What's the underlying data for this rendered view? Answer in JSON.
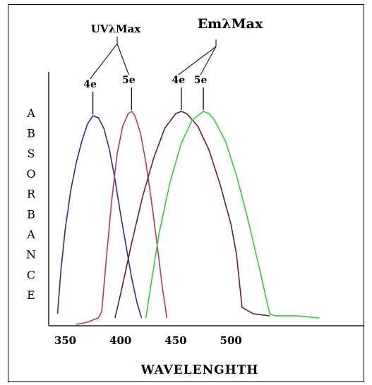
{
  "chart_data": {
    "type": "line",
    "xlabel": "WAVELENGHTH",
    "ylabel": "ABSORBANCE",
    "x_ticks": [
      350,
      400,
      450,
      500
    ],
    "xlim": [
      335,
      620
    ],
    "ylim": [
      0,
      1
    ],
    "grid": false,
    "group_labels": {
      "uv": "UVλMax",
      "em": "EmλMax"
    },
    "series": [
      {
        "label": "4e",
        "group": "uv",
        "color": "#2a2aa0",
        "x": [
          343,
          346,
          350,
          355,
          360,
          365,
          370,
          375,
          380,
          385,
          390,
          395,
          400,
          405,
          410,
          415,
          419
        ],
        "y": [
          0.05,
          0.25,
          0.45,
          0.63,
          0.76,
          0.86,
          0.94,
          0.98,
          0.97,
          0.92,
          0.82,
          0.68,
          0.52,
          0.37,
          0.22,
          0.1,
          0.03
        ]
      },
      {
        "label": "5e",
        "group": "uv",
        "color": "#c0306a",
        "x": [
          360,
          370,
          380,
          383,
          387,
          392,
          397,
          402,
          407,
          410,
          413,
          418,
          423,
          428,
          433,
          438,
          442
        ],
        "y": [
          0.0,
          0.01,
          0.03,
          0.06,
          0.3,
          0.58,
          0.8,
          0.93,
          0.99,
          1.0,
          0.98,
          0.9,
          0.76,
          0.58,
          0.38,
          0.17,
          0.03
        ]
      },
      {
        "label": "4e",
        "group": "em",
        "color": "#6a1a3a",
        "x": [
          395,
          400,
          410,
          420,
          430,
          440,
          450,
          455,
          460,
          470,
          480,
          490,
          500,
          505,
          510,
          520,
          535
        ],
        "y": [
          0.03,
          0.14,
          0.38,
          0.6,
          0.78,
          0.92,
          0.99,
          1.0,
          0.99,
          0.93,
          0.82,
          0.66,
          0.47,
          0.33,
          0.08,
          0.05,
          0.04
        ]
      },
      {
        "label": "5e",
        "group": "em",
        "color": "#2fd02f",
        "x": [
          423,
          428,
          435,
          445,
          455,
          465,
          475,
          480,
          485,
          495,
          505,
          515,
          525,
          535,
          540,
          560,
          580
        ],
        "y": [
          0.03,
          0.2,
          0.43,
          0.67,
          0.85,
          0.96,
          1.0,
          0.99,
          0.96,
          0.86,
          0.7,
          0.5,
          0.28,
          0.05,
          0.04,
          0.04,
          0.03
        ]
      }
    ]
  }
}
